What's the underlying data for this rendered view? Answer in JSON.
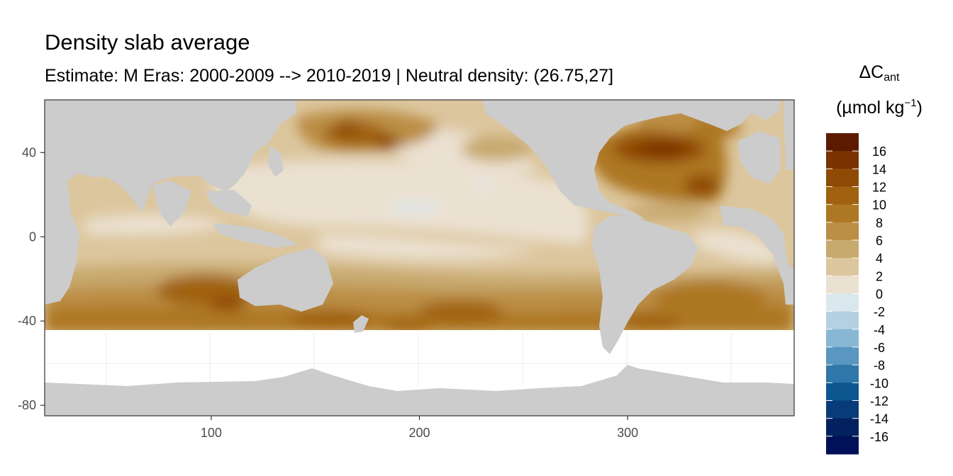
{
  "title": "Density slab average",
  "subtitle": "Estimate: M Eras: 2000-2009 --> 2010-2019 | Neutral density: (26.75,27]",
  "legend": {
    "title_main": "ΔC",
    "title_sub": "ant",
    "unit_open": "(µmol kg",
    "unit_sup": "−1",
    "unit_close": ")",
    "breaks": [
      "16",
      "14",
      "12",
      "10",
      "8",
      "6",
      "4",
      "2",
      "0",
      "-2",
      "-4",
      "-6",
      "-8",
      "-10",
      "-12",
      "-14",
      "-16"
    ],
    "colors": [
      "#5c1a00",
      "#7a3200",
      "#8f4a06",
      "#a0620f",
      "#ad7724",
      "#bb8e45",
      "#c8a96e",
      "#dcc69e",
      "#ebe1d1",
      "#dbe7ee",
      "#b4d0e2",
      "#88b7d3",
      "#5996c0",
      "#2f76a9",
      "#0d5690",
      "#083b79",
      "#04215f",
      "#001158"
    ]
  },
  "axes": {
    "x_ticks": [
      "100",
      "200",
      "300"
    ],
    "y_ticks": [
      "40",
      "0",
      "-40",
      "-80"
    ],
    "xlim": [
      20,
      380
    ],
    "ylim": [
      -85,
      65
    ]
  },
  "colors": {
    "land": "#cccccc",
    "missing": "#ffffff",
    "panel_border": "#333333"
  }
}
